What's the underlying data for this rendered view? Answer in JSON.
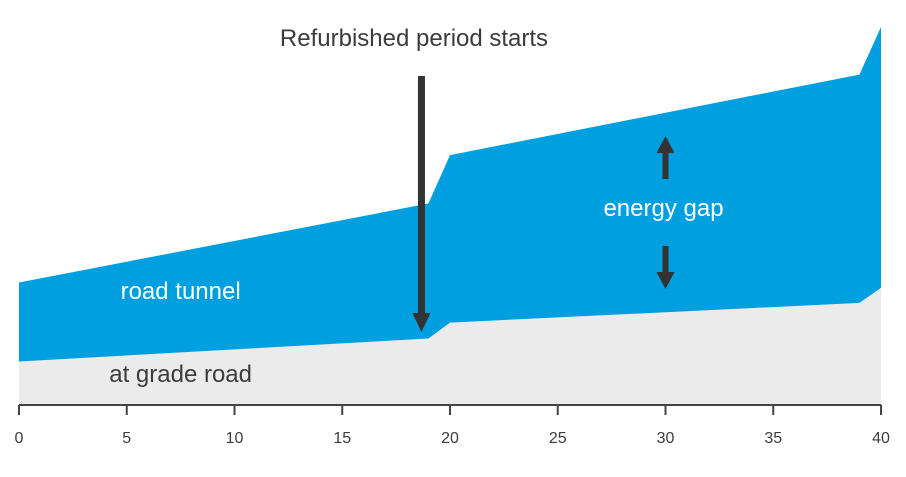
{
  "chart_data": {
    "type": "area",
    "title": "",
    "xlabel": "",
    "ylabel": "",
    "xlim": [
      0,
      40
    ],
    "ylim": [
      0,
      100
    ],
    "x_ticks": [
      0,
      5,
      10,
      15,
      20,
      25,
      30,
      35,
      40
    ],
    "series": [
      {
        "name": "at grade road",
        "color": "#ebebeb",
        "points": [
          [
            0,
            11.5
          ],
          [
            19,
            17.6
          ],
          [
            20,
            21.8
          ],
          [
            39,
            27.0
          ],
          [
            40,
            31.0
          ]
        ]
      },
      {
        "name": "road tunnel",
        "color": "#009fdf",
        "points": [
          [
            0,
            32.4
          ],
          [
            19,
            53.3
          ],
          [
            20,
            66.1
          ],
          [
            39,
            87.4
          ],
          [
            40,
            100
          ]
        ]
      }
    ],
    "annotations": {
      "refurbished": {
        "text": "Refurbished period starts",
        "x": 19
      },
      "energy_gap": {
        "text": "energy gap",
        "x": 30
      },
      "road_tunnel_label": "road tunnel",
      "at_grade_label": "at grade road"
    },
    "colors": {
      "text_dark": "#3c3c3c",
      "text_light": "#ffffff",
      "arrow": "#333333",
      "axis": "#444444"
    }
  }
}
